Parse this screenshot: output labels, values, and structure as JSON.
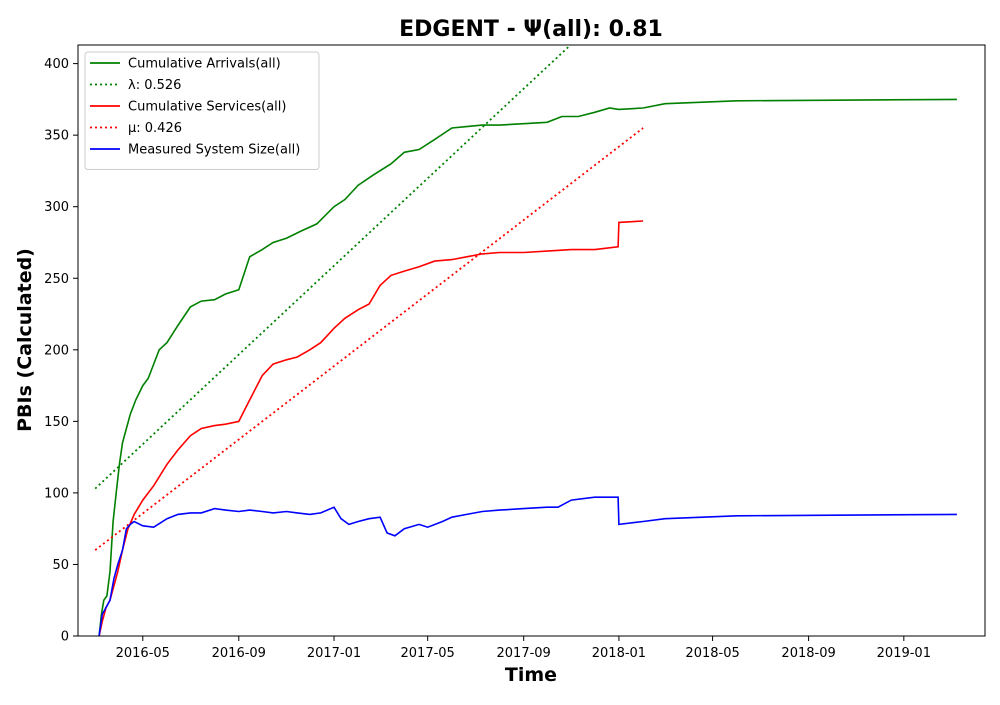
{
  "chart_data": {
    "type": "line",
    "title": "EDGENT -  Ψ(all): 0.81",
    "xlabel": "Time",
    "ylabel": "PBIs (Calculated)",
    "xlim": [
      "2016-02-08",
      "2019-04-15"
    ],
    "ylim": [
      0,
      413
    ],
    "x_ticks": [
      "2016-05-01",
      "2016-09-01",
      "2017-01-01",
      "2017-05-01",
      "2017-09-01",
      "2018-01-01",
      "2018-05-01",
      "2018-09-01",
      "2019-01-01"
    ],
    "x_tick_labels": [
      "2016-05",
      "2016-09",
      "2017-01",
      "2017-05",
      "2017-09",
      "2018-01",
      "2018-05",
      "2018-09",
      "2019-01"
    ],
    "y_ticks": [
      0,
      50,
      100,
      150,
      200,
      250,
      300,
      350,
      400
    ],
    "y_tick_labels": [
      "0",
      "50",
      "100",
      "150",
      "200",
      "250",
      "300",
      "350",
      "400"
    ],
    "grid": false,
    "legend_position": "upper-left",
    "series": [
      {
        "name": "Cumulative Arrivals(all)",
        "color": "#008000",
        "style": "solid",
        "x": [
          "2016-03-06",
          "2016-03-09",
          "2016-03-12",
          "2016-03-16",
          "2016-03-20",
          "2016-03-24",
          "2016-03-28",
          "2016-04-01",
          "2016-04-05",
          "2016-04-10",
          "2016-04-15",
          "2016-04-22",
          "2016-05-01",
          "2016-05-08",
          "2016-05-15",
          "2016-05-22",
          "2016-06-01",
          "2016-06-15",
          "2016-07-01",
          "2016-07-15",
          "2016-08-01",
          "2016-08-15",
          "2016-09-01",
          "2016-09-15",
          "2016-10-01",
          "2016-10-15",
          "2016-11-01",
          "2016-11-20",
          "2016-12-10",
          "2017-01-01",
          "2017-01-15",
          "2017-02-01",
          "2017-02-20",
          "2017-03-15",
          "2017-04-01",
          "2017-04-20",
          "2017-05-10",
          "2017-06-01",
          "2017-06-20",
          "2017-07-10",
          "2017-08-01",
          "2017-09-01",
          "2017-10-01",
          "2017-10-20",
          "2017-11-10",
          "2017-12-01",
          "2017-12-20",
          "2018-01-01",
          "2018-02-01",
          "2018-03-01",
          "2018-06-01",
          "2019-03-10"
        ],
        "y": [
          0,
          15,
          25,
          28,
          45,
          80,
          100,
          120,
          135,
          145,
          155,
          165,
          175,
          180,
          190,
          200,
          205,
          217,
          230,
          234,
          235,
          239,
          242,
          265,
          270,
          275,
          278,
          283,
          288,
          300,
          305,
          315,
          322,
          330,
          338,
          340,
          347,
          355,
          356,
          357,
          357,
          358,
          359,
          363,
          363,
          366,
          369,
          368,
          369,
          372,
          374,
          375
        ]
      },
      {
        "name": "λ: 0.526",
        "color": "#008000",
        "style": "dotted",
        "x": [
          "2016-03-01",
          "2017-10-31"
        ],
        "y": [
          103,
          413
        ]
      },
      {
        "name": "Cumulative Services(all)",
        "color": "#ff0000",
        "style": "solid",
        "x": [
          "2016-03-06",
          "2016-03-10",
          "2016-03-15",
          "2016-03-20",
          "2016-03-25",
          "2016-03-30",
          "2016-04-05",
          "2016-04-12",
          "2016-04-20",
          "2016-05-01",
          "2016-05-15",
          "2016-06-01",
          "2016-06-15",
          "2016-07-01",
          "2016-07-15",
          "2016-08-01",
          "2016-08-15",
          "2016-09-01",
          "2016-09-15",
          "2016-10-01",
          "2016-10-15",
          "2016-11-01",
          "2016-11-15",
          "2016-12-01",
          "2016-12-15",
          "2017-01-01",
          "2017-01-15",
          "2017-02-01",
          "2017-02-15",
          "2017-03-01",
          "2017-03-15",
          "2017-04-01",
          "2017-04-20",
          "2017-05-10",
          "2017-06-01",
          "2017-06-20",
          "2017-07-10",
          "2017-08-01",
          "2017-09-01",
          "2017-10-01",
          "2017-11-01",
          "2017-12-01",
          "2017-12-31",
          "2018-01-01",
          "2018-02-01"
        ],
        "y": [
          0,
          10,
          20,
          25,
          35,
          45,
          60,
          75,
          85,
          95,
          105,
          120,
          130,
          140,
          145,
          147,
          148,
          150,
          165,
          182,
          190,
          193,
          195,
          200,
          205,
          215,
          222,
          228,
          232,
          245,
          252,
          255,
          258,
          262,
          263,
          265,
          267,
          268,
          268,
          269,
          270,
          270,
          272,
          289,
          290
        ]
      },
      {
        "name": "μ: 0.426",
        "color": "#ff0000",
        "style": "dotted",
        "x": [
          "2016-03-01",
          "2018-02-01"
        ],
        "y": [
          60,
          355
        ]
      },
      {
        "name": "Measured System Size(all)",
        "color": "#0000ff",
        "style": "solid",
        "x": [
          "2016-03-06",
          "2016-03-10",
          "2016-03-15",
          "2016-03-20",
          "2016-03-25",
          "2016-03-30",
          "2016-04-05",
          "2016-04-10",
          "2016-04-15",
          "2016-04-20",
          "2016-05-01",
          "2016-05-15",
          "2016-06-01",
          "2016-06-15",
          "2016-07-01",
          "2016-07-15",
          "2016-08-01",
          "2016-08-15",
          "2016-09-01",
          "2016-09-15",
          "2016-10-01",
          "2016-10-15",
          "2016-11-01",
          "2016-11-15",
          "2016-12-01",
          "2016-12-15",
          "2017-01-01",
          "2017-01-10",
          "2017-01-20",
          "2017-02-01",
          "2017-02-15",
          "2017-03-01",
          "2017-03-10",
          "2017-03-20",
          "2017-04-01",
          "2017-04-20",
          "2017-05-01",
          "2017-05-20",
          "2017-06-01",
          "2017-06-20",
          "2017-07-10",
          "2017-08-01",
          "2017-09-01",
          "2017-10-01",
          "2017-10-15",
          "2017-11-01",
          "2017-12-01",
          "2017-12-31",
          "2018-01-01",
          "2018-02-01",
          "2018-03-01",
          "2018-06-01",
          "2019-03-10"
        ],
        "y": [
          0,
          15,
          20,
          25,
          40,
          50,
          60,
          75,
          78,
          80,
          77,
          76,
          82,
          85,
          86,
          86,
          89,
          88,
          87,
          88,
          87,
          86,
          87,
          86,
          85,
          86,
          90,
          82,
          78,
          80,
          82,
          83,
          72,
          70,
          75,
          78,
          76,
          80,
          83,
          85,
          87,
          88,
          89,
          90,
          90,
          95,
          97,
          97,
          78,
          80,
          82,
          84,
          85
        ]
      }
    ]
  }
}
